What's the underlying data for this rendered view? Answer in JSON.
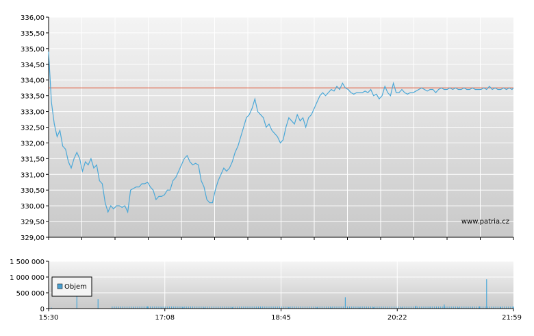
{
  "chart_data": [
    {
      "type": "line",
      "name": "price",
      "ylim": [
        329.0,
        336.0
      ],
      "y_ticks": [
        "336,00",
        "335,50",
        "335,00",
        "334,50",
        "334,00",
        "333,50",
        "333,00",
        "332,50",
        "332,00",
        "331,50",
        "331,00",
        "330,50",
        "330,00",
        "329,50",
        "329,00"
      ],
      "grid": true,
      "reference_line": 333.75,
      "watermark": "www.patria.cz",
      "x": [
        0,
        2,
        4,
        6,
        8,
        10,
        12,
        14,
        16,
        18,
        20,
        22,
        24,
        26,
        28,
        30,
        32,
        34,
        36,
        38,
        40,
        42,
        44,
        46,
        48,
        50,
        52,
        54,
        56,
        58,
        60,
        62,
        64,
        66,
        68,
        70,
        72,
        74,
        76,
        78,
        80,
        82,
        84,
        86,
        88,
        90,
        92,
        94,
        96,
        98,
        100,
        102,
        104,
        106,
        108,
        110,
        112,
        114,
        116,
        118,
        120,
        122,
        124,
        126,
        128,
        130,
        132,
        134,
        136,
        138,
        140,
        142,
        144,
        146,
        148,
        150,
        152,
        154,
        156,
        158,
        160,
        162,
        164,
        166,
        168,
        170,
        172,
        174,
        176,
        178,
        180,
        182,
        184,
        186,
        188,
        190,
        192,
        194,
        196,
        198,
        200,
        202,
        204,
        206,
        208,
        210,
        212,
        214,
        216,
        218,
        220,
        222,
        224,
        226,
        228,
        230,
        232,
        234,
        236,
        238,
        240,
        242,
        244,
        246,
        248,
        250,
        252,
        254,
        256,
        258,
        260,
        262,
        264,
        266,
        268,
        270,
        272,
        274,
        276,
        278,
        280,
        282,
        284,
        286,
        288,
        290,
        292,
        294,
        296,
        298,
        300,
        302,
        304,
        306,
        308,
        310,
        312,
        314,
        316,
        318,
        320,
        322,
        324,
        326,
        328,
        329
      ],
      "values": [
        334.9,
        333.3,
        332.6,
        332.2,
        332.4,
        331.9,
        331.8,
        331.4,
        331.2,
        331.5,
        331.7,
        331.5,
        331.1,
        331.4,
        331.3,
        331.5,
        331.2,
        331.3,
        330.8,
        330.7,
        330.1,
        329.8,
        330.0,
        329.9,
        330.0,
        330.0,
        329.95,
        330.0,
        329.8,
        330.5,
        330.55,
        330.6,
        330.6,
        330.7,
        330.7,
        330.75,
        330.6,
        330.5,
        330.2,
        330.3,
        330.3,
        330.35,
        330.5,
        330.5,
        330.8,
        330.9,
        331.1,
        331.3,
        331.5,
        331.6,
        331.4,
        331.3,
        331.35,
        331.3,
        330.8,
        330.6,
        330.2,
        330.1,
        330.1,
        330.5,
        330.8,
        331.0,
        331.2,
        331.1,
        331.2,
        331.4,
        331.7,
        331.9,
        332.2,
        332.5,
        332.8,
        332.9,
        333.1,
        333.4,
        333.0,
        332.9,
        332.8,
        332.5,
        332.6,
        332.4,
        332.3,
        332.2,
        332.0,
        332.1,
        332.5,
        332.8,
        332.7,
        332.6,
        332.9,
        332.7,
        332.8,
        332.5,
        332.8,
        332.9,
        333.1,
        333.3,
        333.5,
        333.6,
        333.5,
        333.6,
        333.7,
        333.65,
        333.8,
        333.7,
        333.9,
        333.75,
        333.7,
        333.6,
        333.55,
        333.6,
        333.6,
        333.6,
        333.65,
        333.6,
        333.7,
        333.5,
        333.55,
        333.4,
        333.5,
        333.8,
        333.6,
        333.5,
        333.9,
        333.6,
        333.6,
        333.7,
        333.6,
        333.55,
        333.6,
        333.6,
        333.65,
        333.7,
        333.75,
        333.7,
        333.65,
        333.7,
        333.7,
        333.6,
        333.7,
        333.75,
        333.7,
        333.7,
        333.75,
        333.7,
        333.75,
        333.7,
        333.7,
        333.75,
        333.7,
        333.7,
        333.75,
        333.7,
        333.7,
        333.7,
        333.75,
        333.7,
        333.8,
        333.7,
        333.75,
        333.7,
        333.7,
        333.75,
        333.7,
        333.75,
        333.7,
        333.75
      ]
    },
    {
      "type": "bar",
      "name": "volume",
      "ylim": [
        0,
        1500000
      ],
      "y_ticks": [
        "1 500 000",
        "1 000 000",
        "500 000",
        "0"
      ],
      "x_ticks": [
        "15:30",
        "17:08",
        "18:45",
        "20:22",
        "21:59"
      ],
      "legend": "Objem",
      "grid": true,
      "bars": [
        [
          2,
          30000
        ],
        [
          20,
          480000
        ],
        [
          35,
          300000
        ],
        [
          60,
          40000
        ],
        [
          70,
          70000
        ],
        [
          80,
          30000
        ],
        [
          95,
          40000
        ],
        [
          110,
          30000
        ],
        [
          130,
          40000
        ],
        [
          150,
          30000
        ],
        [
          170,
          40000
        ],
        [
          180,
          20000
        ],
        [
          190,
          40000
        ],
        [
          200,
          30000
        ],
        [
          210,
          360000
        ],
        [
          220,
          30000
        ],
        [
          230,
          40000
        ],
        [
          240,
          20000
        ],
        [
          250,
          30000
        ],
        [
          260,
          90000
        ],
        [
          270,
          60000
        ],
        [
          280,
          130000
        ],
        [
          290,
          30000
        ],
        [
          300,
          50000
        ],
        [
          305,
          70000
        ],
        [
          310,
          930000
        ],
        [
          315,
          40000
        ],
        [
          320,
          50000
        ],
        [
          329,
          60000
        ]
      ]
    }
  ]
}
